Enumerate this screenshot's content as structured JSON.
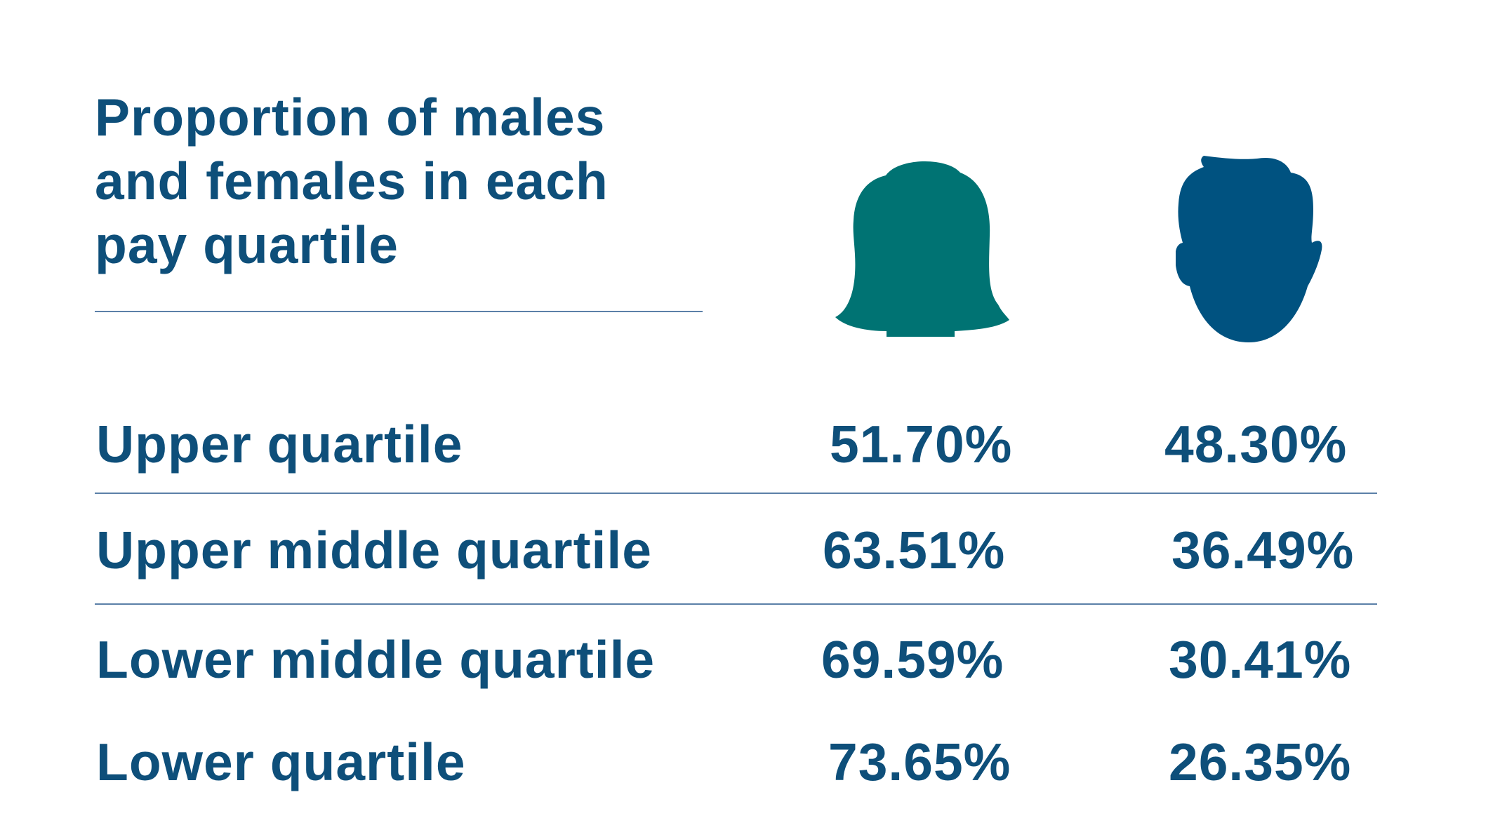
{
  "colors": {
    "text": "#0e4f7a",
    "female_icon": "#007373",
    "male_icon": "#005280",
    "rule": "#5b80a8"
  },
  "icons": {
    "female": "female-head-icon",
    "male": "male-head-icon"
  },
  "chart_data": {
    "type": "table",
    "title": "Proportion of males and females in each pay quartile",
    "title_lines": [
      "Proportion of males",
      "and females in each",
      "pay quartile"
    ],
    "columns": [
      "female",
      "male"
    ],
    "rows": [
      {
        "label": "Upper quartile",
        "female": "51.70%",
        "male": "48.30%"
      },
      {
        "label": "Upper middle quartile",
        "female": "63.51%",
        "male": "36.49%"
      },
      {
        "label": "Lower middle quartile",
        "female": "69.59%",
        "male": "30.41%"
      },
      {
        "label": "Lower quartile",
        "female": "73.65%",
        "male": "26.35%"
      }
    ],
    "values_female": [
      51.7,
      63.51,
      69.59,
      73.65
    ],
    "values_male": [
      48.3,
      36.49,
      30.41,
      26.35
    ]
  }
}
